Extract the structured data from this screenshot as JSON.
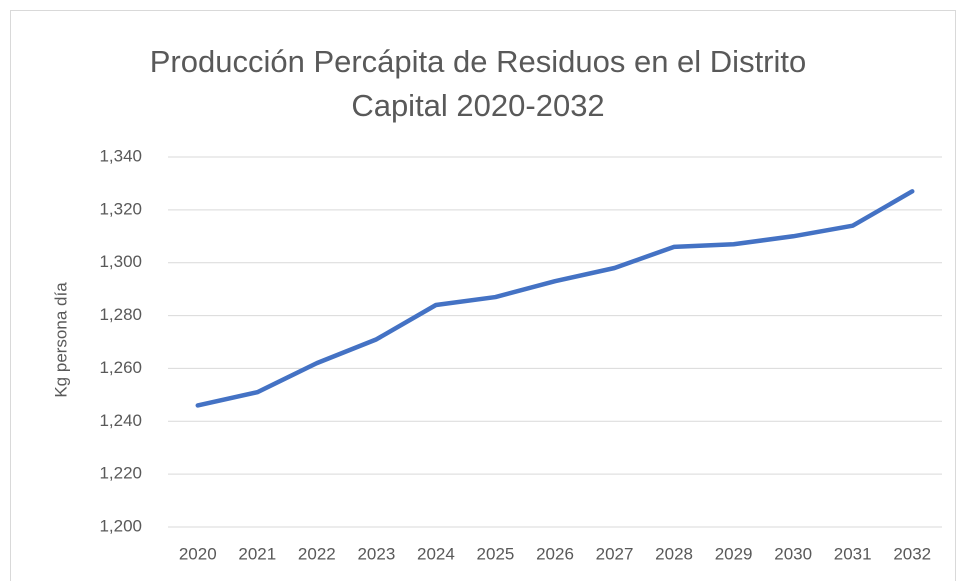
{
  "chart_data": {
    "type": "line",
    "title": "Producción Percápita de Residuos en el Distrito Capital 2020-2032",
    "y_label": "Kg persona día",
    "categories": [
      "2020",
      "2021",
      "2022",
      "2023",
      "2024",
      "2025",
      "2026",
      "2027",
      "2028",
      "2029",
      "2030",
      "2031",
      "2032"
    ],
    "series": [
      {
        "name": "Kg persona día",
        "color": "#4472c4",
        "values": [
          1.246,
          1.251,
          1.262,
          1.271,
          1.284,
          1.287,
          1.293,
          1.298,
          1.306,
          1.307,
          1.31,
          1.314,
          1.327
        ]
      }
    ],
    "ylim": [
      1.2,
      1.34
    ],
    "yticks": [
      {
        "value": 1.2,
        "label": "1,200"
      },
      {
        "value": 1.22,
        "label": "1,220"
      },
      {
        "value": 1.24,
        "label": "1,240"
      },
      {
        "value": 1.26,
        "label": "1,260"
      },
      {
        "value": 1.28,
        "label": "1,280"
      },
      {
        "value": 1.3,
        "label": "1,300"
      },
      {
        "value": 1.32,
        "label": "1,320"
      },
      {
        "value": 1.34,
        "label": "1,340"
      }
    ],
    "grid": true
  }
}
